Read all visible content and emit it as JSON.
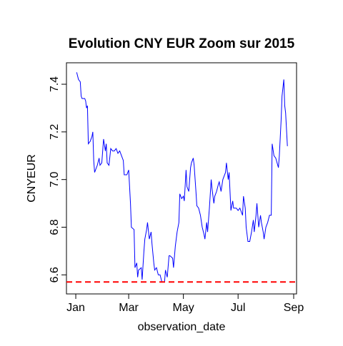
{
  "chart_data": {
    "type": "line",
    "title": "Evolution CNY EUR Zoom sur 2015",
    "xlabel": "observation_date",
    "ylabel": "CNYEUR",
    "xlim": [
      -10.4,
      246.2
    ],
    "ylim": [
      6.52,
      7.49
    ],
    "xticks": [
      {
        "value": 0,
        "label": "Jan"
      },
      {
        "value": 59,
        "label": "Mar"
      },
      {
        "value": 120,
        "label": "May"
      },
      {
        "value": 181,
        "label": "Jul"
      },
      {
        "value": 243,
        "label": "Sep"
      }
    ],
    "yticks": [
      6.6,
      6.8,
      {
        "value": 7,
        "label": "7.0"
      },
      7.2,
      7.4
    ],
    "hline": {
      "value": 6.57,
      "color": "#ff0000",
      "dashed": true
    },
    "series": [
      {
        "name": "CNYEUR",
        "color": "#0000ff",
        "x": [
          1,
          3,
          5,
          6,
          7,
          10,
          11,
          12,
          13,
          14,
          16,
          18,
          19,
          20,
          21,
          22,
          24,
          26,
          27,
          29,
          31,
          33,
          34,
          35,
          37,
          39,
          41,
          43,
          45,
          47,
          49,
          51,
          53,
          54,
          57,
          59,
          61,
          62,
          65,
          66,
          68,
          69,
          70,
          73,
          74,
          76,
          77,
          79,
          80,
          82,
          84,
          85,
          87,
          88,
          90,
          92,
          94,
          96,
          99,
          100,
          102,
          104,
          105,
          108,
          109,
          111,
          113,
          115,
          116,
          118,
          120,
          121,
          123,
          124,
          126,
          128,
          129,
          131,
          132,
          134,
          135,
          137,
          139,
          141,
          143,
          144,
          146,
          147,
          149,
          151,
          152,
          154,
          155,
          157,
          159,
          160,
          162,
          164,
          167,
          168,
          170,
          171,
          173,
          175,
          176,
          179,
          181,
          183,
          186,
          187,
          189,
          190,
          192,
          194,
          196,
          198,
          199,
          201,
          202,
          204,
          206,
          207,
          209,
          210,
          212,
          214,
          216,
          218,
          219,
          221,
          223,
          226,
          227,
          229,
          230,
          232,
          233,
          234,
          236
        ],
        "values": [
          7.45,
          7.42,
          7.41,
          7.35,
          7.34,
          7.34,
          7.33,
          7.3,
          7.31,
          7.15,
          7.16,
          7.18,
          7.2,
          7.08,
          7.03,
          7.04,
          7.06,
          7.09,
          7.06,
          7.07,
          7.17,
          7.12,
          7.15,
          7.07,
          7.06,
          7.13,
          7.12,
          7.12,
          7.13,
          7.11,
          7.12,
          7.1,
          7.08,
          7.02,
          7.02,
          7.04,
          6.9,
          6.8,
          6.79,
          6.63,
          6.65,
          6.59,
          6.62,
          6.63,
          6.58,
          6.7,
          6.75,
          6.79,
          6.82,
          6.75,
          6.78,
          6.73,
          6.65,
          6.62,
          6.63,
          6.6,
          6.6,
          6.57,
          6.57,
          6.62,
          6.59,
          6.68,
          6.68,
          6.67,
          6.63,
          6.72,
          6.78,
          6.82,
          6.94,
          6.92,
          6.93,
          6.91,
          7.04,
          6.97,
          6.95,
          7.05,
          7.07,
          7.09,
          7.06,
          6.95,
          6.89,
          6.88,
          6.85,
          6.8,
          6.77,
          6.75,
          6.82,
          6.78,
          6.88,
          7.0,
          6.96,
          6.9,
          6.93,
          6.95,
          6.98,
          6.99,
          6.95,
          7.0,
          7.03,
          7.07,
          7.0,
          7.03,
          6.87,
          6.91,
          6.88,
          6.88,
          6.87,
          6.88,
          6.85,
          6.93,
          6.88,
          6.8,
          6.74,
          6.74,
          6.78,
          6.83,
          6.78,
          6.85,
          6.9,
          6.8,
          6.85,
          6.82,
          6.78,
          6.75,
          6.8,
          6.82,
          6.85,
          6.85,
          7.15,
          7.1,
          7.09,
          7.05,
          7.1,
          7.25,
          7.35,
          7.42,
          7.31,
          7.28,
          7.14
        ]
      }
    ]
  }
}
